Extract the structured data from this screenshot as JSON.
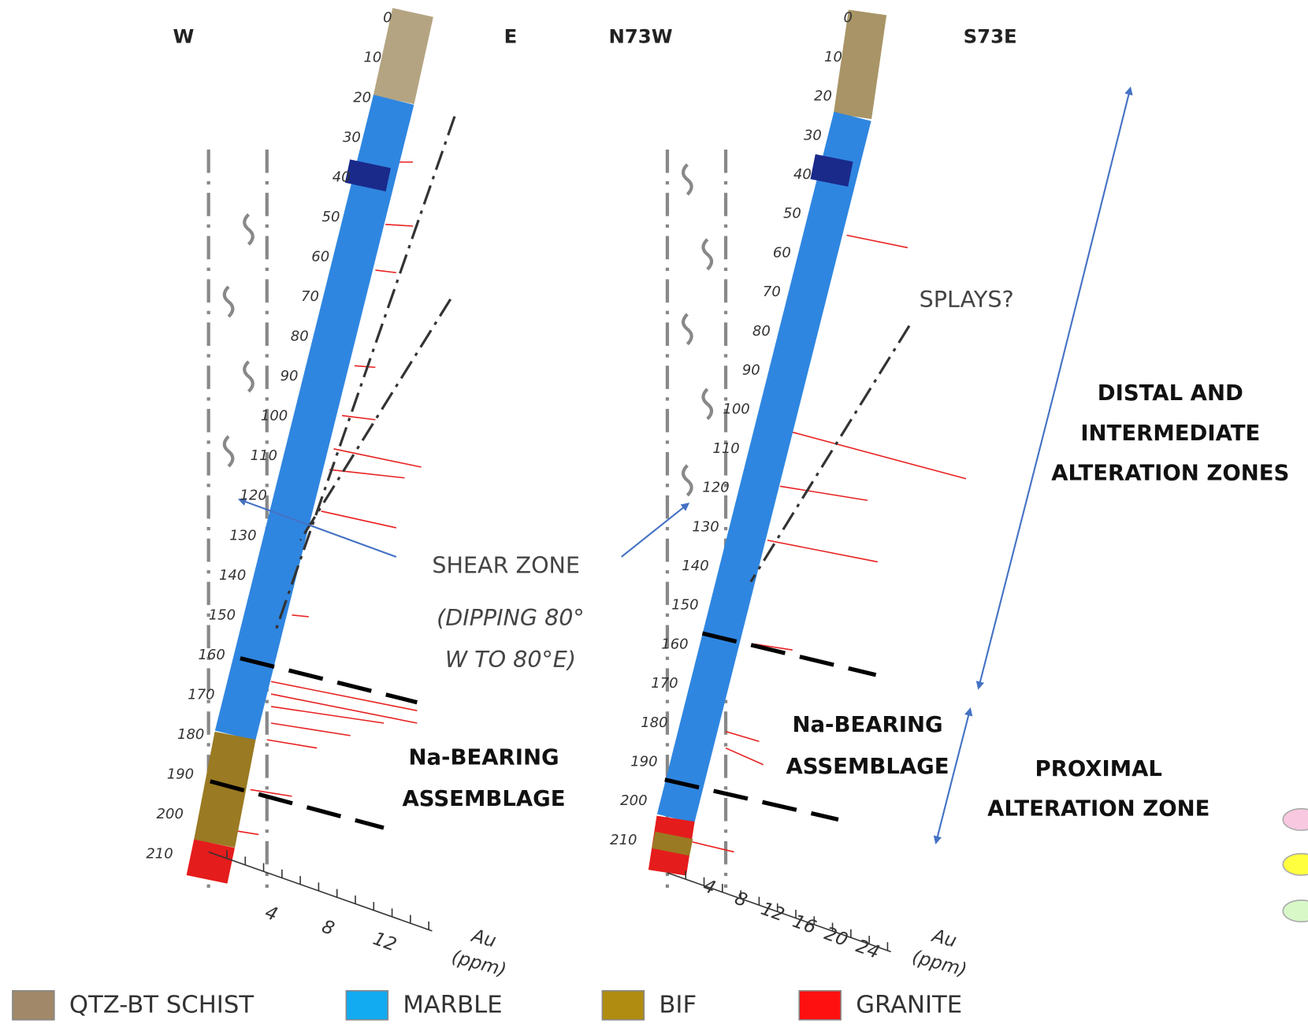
{
  "left_panel": {
    "dir_left": "W",
    "dir_right": "E",
    "depth_labels": [
      "0",
      "10",
      "20",
      "30",
      "40",
      "50",
      "60",
      "70",
      "80",
      "90",
      "100",
      "110",
      "120",
      "130",
      "140",
      "150",
      "160",
      "170",
      "180",
      "190",
      "200",
      "210"
    ],
    "axis_ticks": [
      "4",
      "8",
      "12"
    ],
    "axis_label": [
      "Au",
      "(ppm)"
    ]
  },
  "right_panel": {
    "dir_left": "N73W",
    "dir_right": "S73E",
    "depth_labels": [
      "0",
      "10",
      "20",
      "30",
      "40",
      "50",
      "60",
      "70",
      "80",
      "90",
      "100",
      "110",
      "120",
      "130",
      "140",
      "150",
      "160",
      "170",
      "180",
      "190",
      "200",
      "210"
    ],
    "axis_ticks": [
      "4",
      "8",
      "12",
      "16",
      "20",
      "24"
    ],
    "axis_label": [
      "Au",
      "(ppm)"
    ]
  },
  "annotations": {
    "shear_zone": "SHEAR ZONE",
    "dipping": [
      "(DIPPING 80°",
      "W TO 80°E)"
    ],
    "splays": "SPLAYS?",
    "na_left": [
      "Na-BEARING",
      "ASSEMBLAGE"
    ],
    "na_right": [
      "Na-BEARING",
      "ASSEMBLAGE"
    ],
    "distal": [
      "DISTAL AND",
      "INTERMEDIATE",
      "ALTERATION ZONES"
    ],
    "proximal": [
      "PROXIMAL",
      "ALTERATION ZONE"
    ]
  },
  "legend": [
    {
      "label": "QTZ-BT SCHIST",
      "color": "#a08868"
    },
    {
      "label": "MARBLE",
      "color": "#12aaf0"
    },
    {
      "label": "BIF",
      "color": "#b08c10"
    },
    {
      "label": "GRANITE",
      "color": "#ff1010"
    }
  ]
}
